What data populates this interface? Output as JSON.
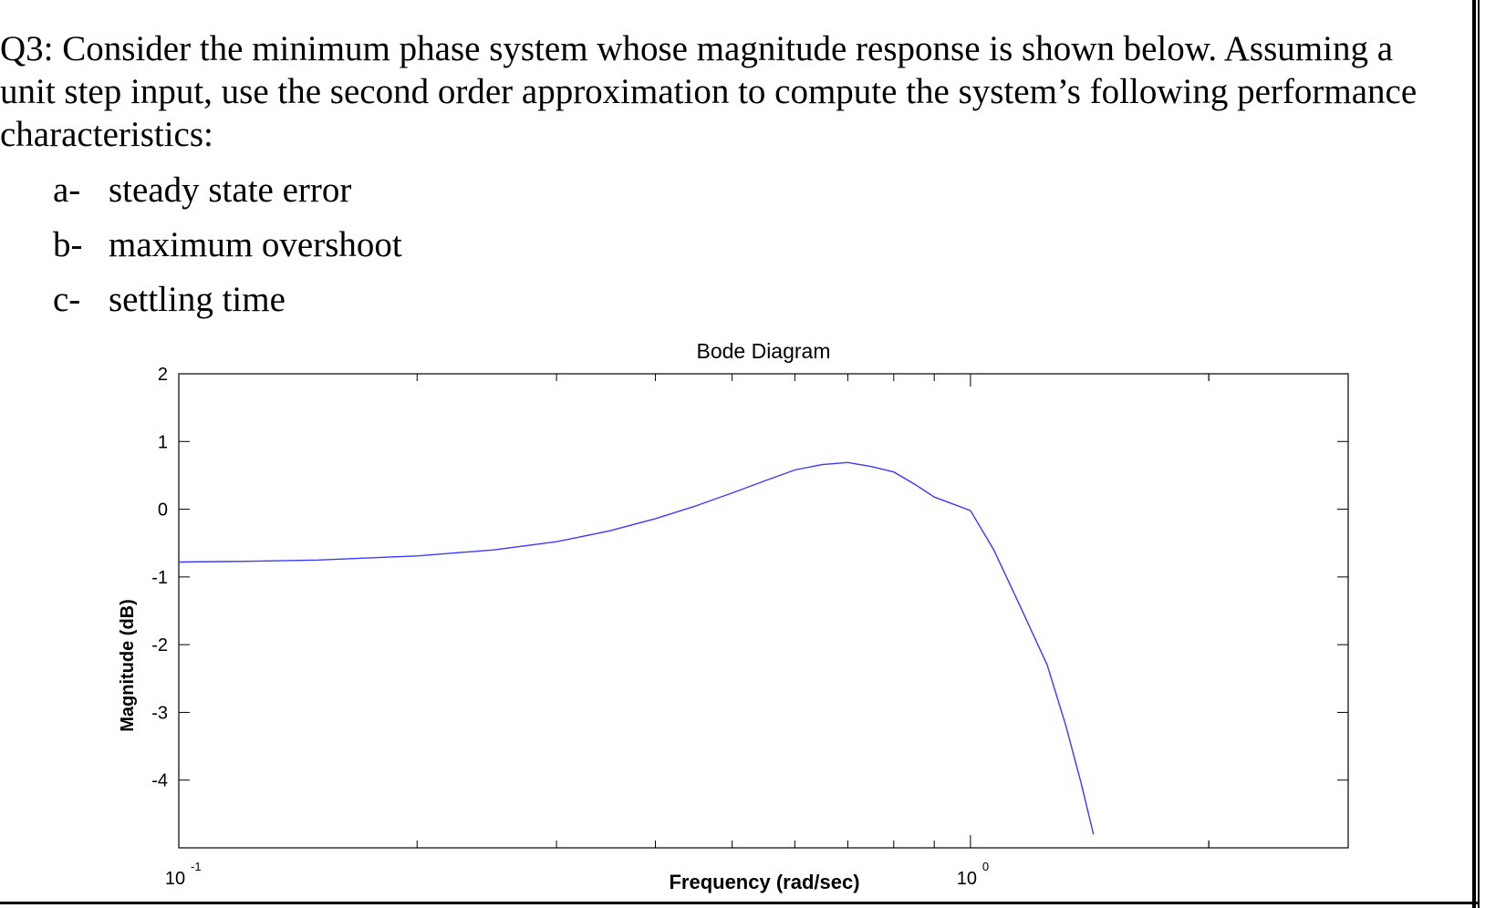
{
  "question": {
    "lines": [
      "Q3: Consider the minimum phase system whose magnitude response is shown below. Assuming a",
      "unit step input, use the second order approximation to compute the system’s following performance",
      "characteristics:"
    ],
    "items": [
      {
        "letter": "a-",
        "text": "steady state error"
      },
      {
        "letter": "b-",
        "text": "maximum overshoot"
      },
      {
        "letter": "c-",
        "text": "settling time"
      }
    ]
  },
  "chart_data": {
    "type": "line",
    "title": "Bode Diagram",
    "xlabel": "Frequency  (rad/sec)",
    "ylabel": "Magnitude (dB)",
    "xscale": "log",
    "xlim": [
      0.1,
      3.0
    ],
    "ylim": [
      -5,
      2
    ],
    "yticks": [
      2,
      1,
      0,
      -1,
      -2,
      -3,
      -4
    ],
    "xticks": [
      {
        "value": 0.1,
        "base": "10",
        "exp": "-1"
      },
      {
        "value": 1.0,
        "base": "10",
        "exp": "0"
      }
    ],
    "grid": false,
    "series": [
      {
        "color": "#3a3aff",
        "x": [
          0.1,
          0.12,
          0.15,
          0.2,
          0.25,
          0.3,
          0.35,
          0.4,
          0.45,
          0.5,
          0.55,
          0.6,
          0.65,
          0.7,
          0.75,
          0.8,
          0.85,
          0.9,
          1.0,
          1.07,
          1.15,
          1.25,
          1.32,
          1.38,
          1.43
        ],
        "y": [
          -0.78,
          -0.77,
          -0.75,
          -0.69,
          -0.6,
          -0.48,
          -0.32,
          -0.14,
          0.05,
          0.24,
          0.42,
          0.58,
          0.66,
          0.69,
          0.63,
          0.55,
          0.37,
          0.18,
          -0.02,
          -0.6,
          -1.38,
          -2.3,
          -3.2,
          -4.05,
          -4.8
        ]
      }
    ]
  }
}
